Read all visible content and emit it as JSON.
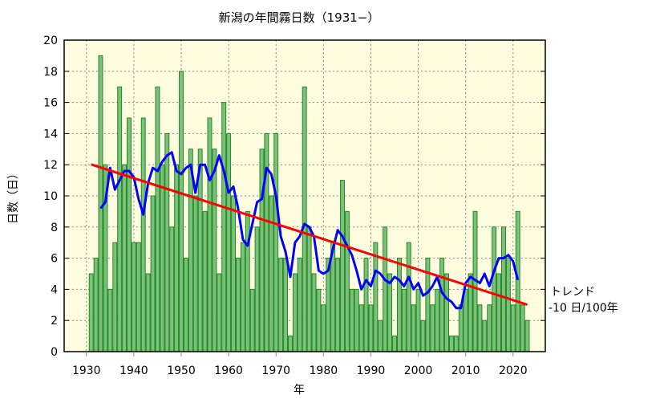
{
  "chart_data": {
    "type": "bar",
    "title": "新潟の年間霧日数（1931−）",
    "xlabel": "年",
    "ylabel": "日数（日）",
    "xlim": [
      1925.3,
      2026.8
    ],
    "ylim": [
      0,
      20
    ],
    "x_ticks": [
      1930,
      1940,
      1950,
      1960,
      1970,
      1980,
      1990,
      2000,
      2010,
      2020
    ],
    "y_ticks": [
      0,
      2,
      4,
      6,
      8,
      10,
      12,
      14,
      16,
      18,
      20
    ],
    "grid": true,
    "background": "#FFFDE0",
    "colors": {
      "bar_fill": "#7DC07D",
      "bar_stroke": "#1E8A1E",
      "moving_average": "#0000FF",
      "trend": "#FF0000"
    },
    "years_start": 1931,
    "values": [
      5,
      6,
      19,
      12,
      4,
      7,
      17,
      12,
      15,
      7,
      7,
      15,
      5,
      10,
      17,
      12,
      14,
      8,
      12,
      18,
      6,
      13,
      10,
      13,
      9,
      15,
      13,
      5,
      16,
      14,
      10,
      6,
      7,
      9,
      4,
      8,
      13,
      14,
      10,
      14,
      6,
      6,
      1,
      5,
      6,
      17,
      8,
      5,
      4,
      3,
      6,
      7,
      6,
      11,
      9,
      4,
      4,
      3,
      6,
      3,
      7,
      2,
      8,
      5,
      1,
      6,
      4,
      7,
      3,
      4,
      2,
      6,
      3,
      4,
      6,
      5,
      1,
      1,
      3,
      4,
      5,
      9,
      3,
      2,
      3,
      8,
      5,
      8,
      6,
      3,
      9,
      3,
      2
    ],
    "moving_average_window": 5,
    "trend": {
      "label": "トレンド",
      "rate_label": "-10 日/100年"
    }
  }
}
